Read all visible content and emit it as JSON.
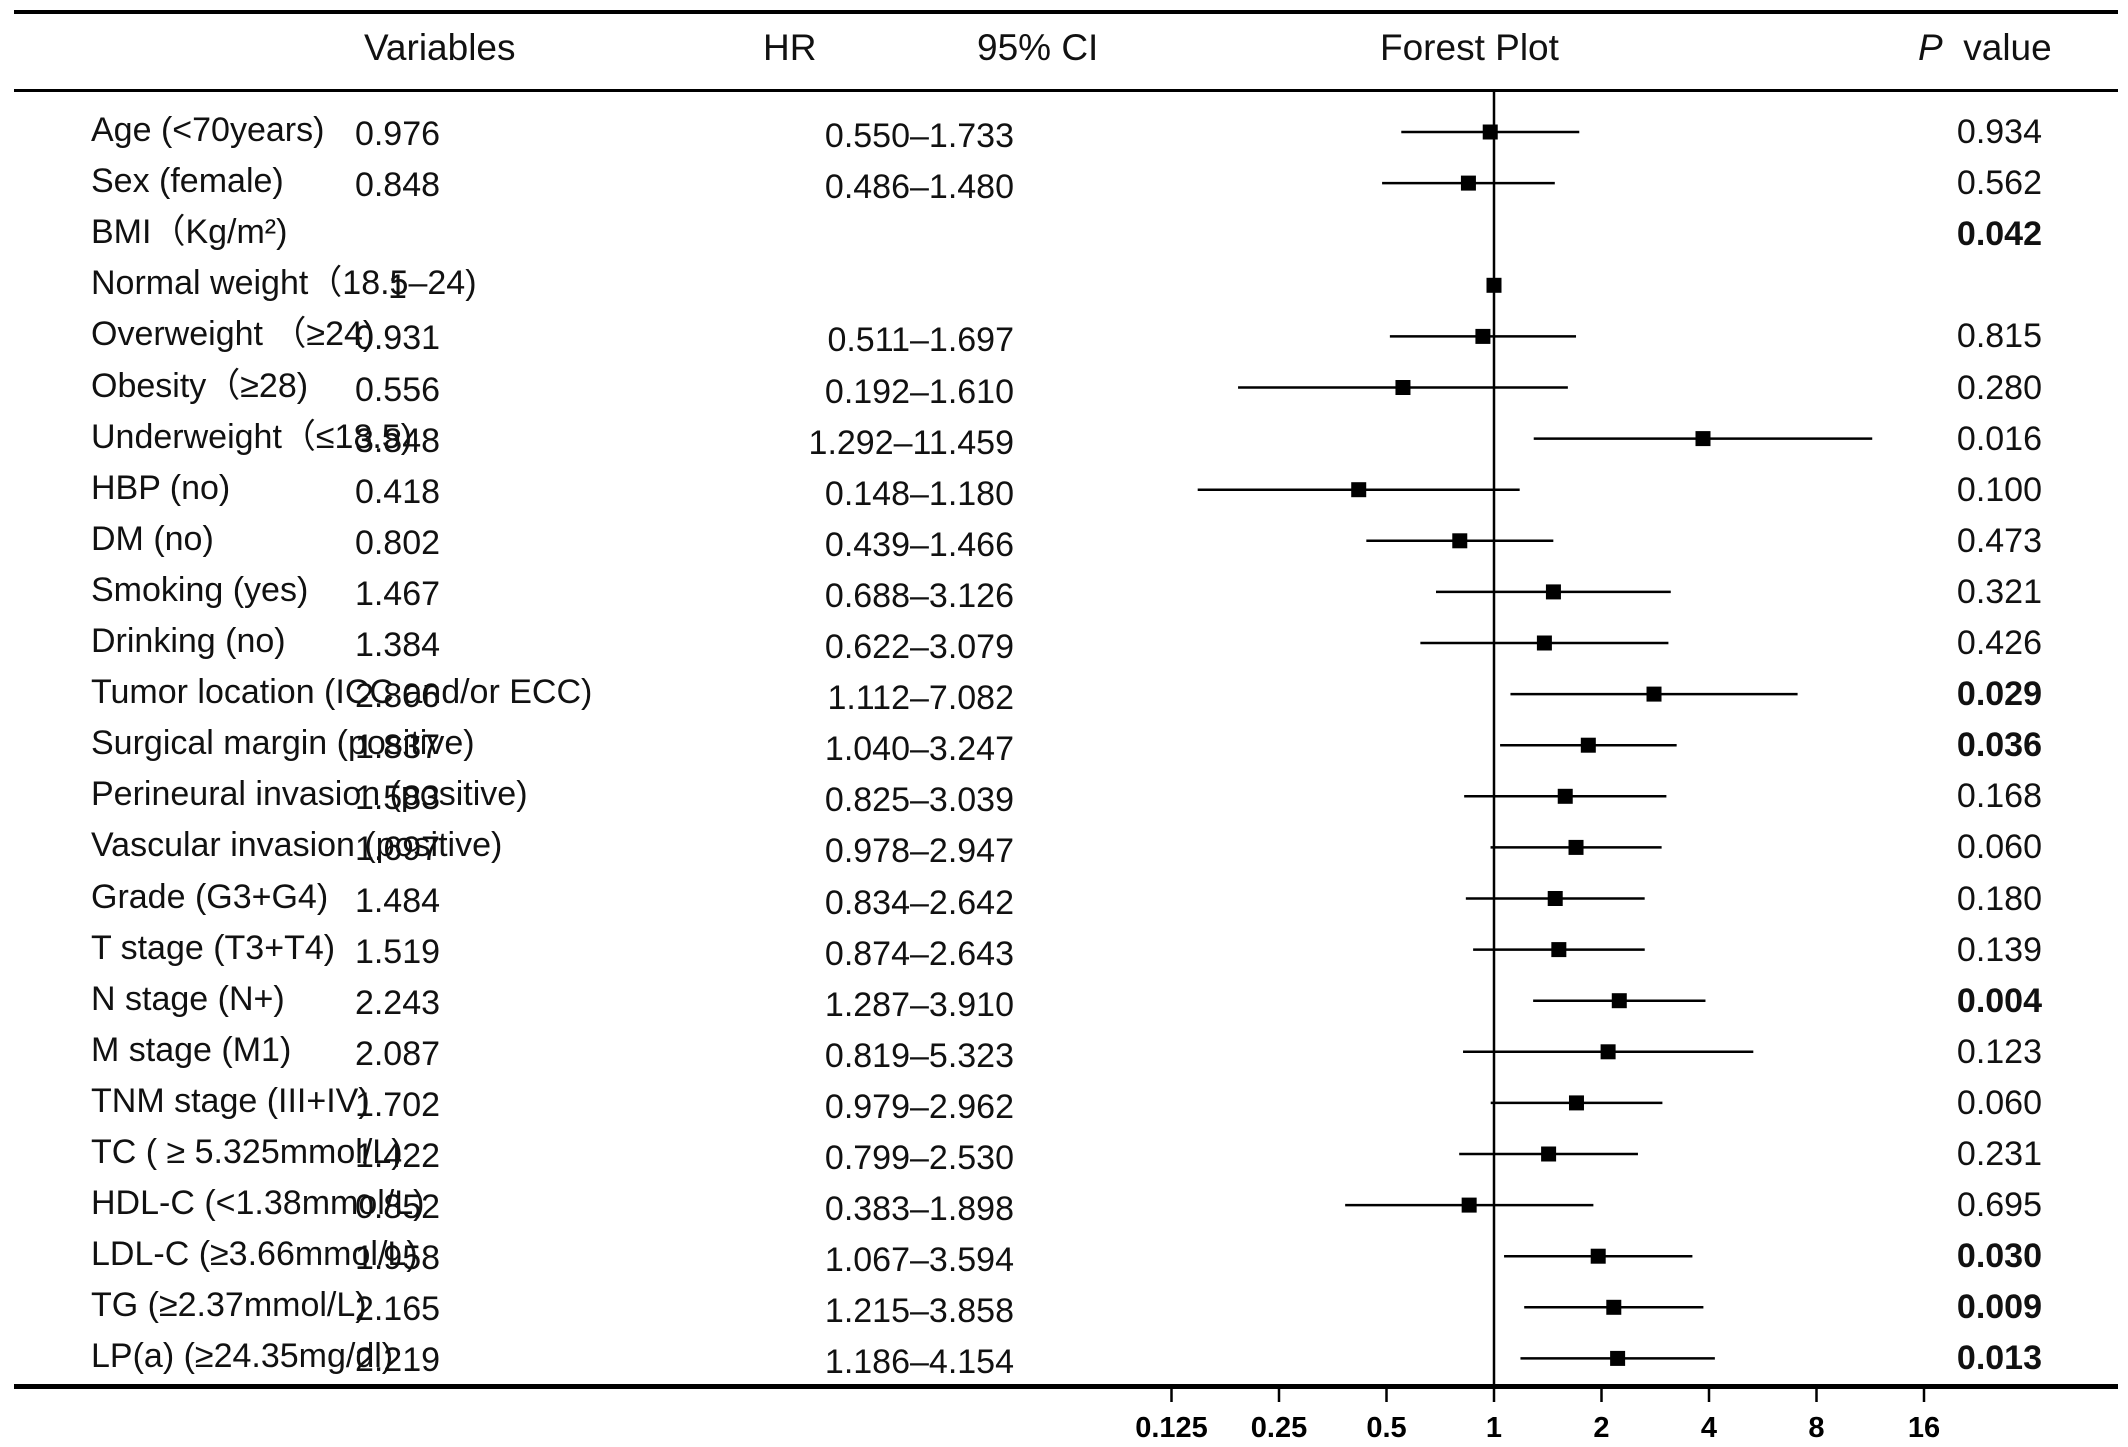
{
  "header": {
    "variables": "Variables",
    "hr": "HR",
    "ci": "95% CI",
    "plot": "Forest Plot",
    "p_italic": "P",
    "p_rest": "  value"
  },
  "chart_data": {
    "type": "forest",
    "x_scale": "log2",
    "x_ticks": [
      0.125,
      0.25,
      0.5,
      1,
      2,
      4,
      8,
      16
    ],
    "x_tick_labels": [
      "0.125",
      "0.25",
      "0.5",
      "1",
      "2",
      "4",
      "8",
      "16"
    ],
    "reference_line": 1,
    "rows": [
      {
        "label": "Age (<70years)",
        "hr": "0.976",
        "ci": "0.550–1.733",
        "p": "0.934",
        "p_bold": false,
        "est": 0.976,
        "lo": 0.55,
        "hi": 1.733
      },
      {
        "label": "Sex (female)",
        "hr": "0.848",
        "ci": "0.486–1.480",
        "p": "0.562",
        "p_bold": false,
        "est": 0.848,
        "lo": 0.486,
        "hi": 1.48
      },
      {
        "label": "BMI（Kg/m²)",
        "hr": "",
        "ci": "",
        "p": "0.042",
        "p_bold": true,
        "est": null,
        "lo": null,
        "hi": null
      },
      {
        "label": "Normal weight（18.5–24)",
        "hr": "1",
        "ci": "",
        "p": "",
        "p_bold": false,
        "est": 1,
        "lo": null,
        "hi": null
      },
      {
        "label": "Overweight （≥24)",
        "hr": "0.931",
        "ci": "0.511–1.697",
        "p": "0.815",
        "p_bold": false,
        "est": 0.931,
        "lo": 0.511,
        "hi": 1.697
      },
      {
        "label": "Obesity（≥28)",
        "hr": "0.556",
        "ci": "0.192–1.610",
        "p": "0.280",
        "p_bold": false,
        "est": 0.556,
        "lo": 0.192,
        "hi": 1.61
      },
      {
        "label": "Underweight（≤18.5)",
        "hr": "3.848",
        "ci": "1.292–11.459",
        "p": "0.016",
        "p_bold": false,
        "est": 3.848,
        "lo": 1.292,
        "hi": 11.459
      },
      {
        "label": "HBP (no)",
        "hr": "0.418",
        "ci": "0.148–1.180",
        "p": "0.100",
        "p_bold": false,
        "est": 0.418,
        "lo": 0.148,
        "hi": 1.18
      },
      {
        "label": "DM (no)",
        "hr": "0.802",
        "ci": "0.439–1.466",
        "p": "0.473",
        "p_bold": false,
        "est": 0.802,
        "lo": 0.439,
        "hi": 1.466
      },
      {
        "label": "Smoking (yes)",
        "hr": "1.467",
        "ci": "0.688–3.126",
        "p": "0.321",
        "p_bold": false,
        "est": 1.467,
        "lo": 0.688,
        "hi": 3.126
      },
      {
        "label": "Drinking (no)",
        "hr": "1.384",
        "ci": "0.622–3.079",
        "p": "0.426",
        "p_bold": false,
        "est": 1.384,
        "lo": 0.622,
        "hi": 3.079
      },
      {
        "label": "Tumor location (ICC and/or ECC)",
        "hr": "2.806",
        "ci": "1.112–7.082",
        "p": "0.029",
        "p_bold": true,
        "est": 2.806,
        "lo": 1.112,
        "hi": 7.082
      },
      {
        "label": "Surgical margin (positive)",
        "hr": "1.837",
        "ci": "1.040–3.247",
        "p": "0.036",
        "p_bold": true,
        "est": 1.837,
        "lo": 1.04,
        "hi": 3.247
      },
      {
        "label": "Perineural invasion (positive)",
        "hr": "1.583",
        "ci": "0.825–3.039",
        "p": "0.168",
        "p_bold": false,
        "est": 1.583,
        "lo": 0.825,
        "hi": 3.039
      },
      {
        "label": "Vascular invasion (positive)",
        "hr": "1.697",
        "ci": "0.978–2.947",
        "p": "0.060",
        "p_bold": false,
        "est": 1.697,
        "lo": 0.978,
        "hi": 2.947
      },
      {
        "label": "Grade (G3+G4)",
        "hr": "1.484",
        "ci": "0.834–2.642",
        "p": "0.180",
        "p_bold": false,
        "est": 1.484,
        "lo": 0.834,
        "hi": 2.642
      },
      {
        "label": "T stage (T3+T4)",
        "hr": "1.519",
        "ci": "0.874–2.643",
        "p": "0.139",
        "p_bold": false,
        "est": 1.519,
        "lo": 0.874,
        "hi": 2.643
      },
      {
        "label": "N stage (N+)",
        "hr": "2.243",
        "ci": "1.287–3.910",
        "p": "0.004",
        "p_bold": true,
        "est": 2.243,
        "lo": 1.287,
        "hi": 3.91
      },
      {
        "label": "M stage (M1)",
        "hr": "2.087",
        "ci": "0.819–5.323",
        "p": "0.123",
        "p_bold": false,
        "est": 2.087,
        "lo": 0.819,
        "hi": 5.323
      },
      {
        "label": "TNM stage (III+IV)",
        "hr": "1.702",
        "ci": "0.979–2.962",
        "p": "0.060",
        "p_bold": false,
        "est": 1.702,
        "lo": 0.979,
        "hi": 2.962
      },
      {
        "label": "TC ( ≥ 5.325mmol/L)",
        "hr": "1.422",
        "ci": "0.799–2.530",
        "p": "0.231",
        "p_bold": false,
        "est": 1.422,
        "lo": 0.799,
        "hi": 2.53
      },
      {
        "label": "HDL-C (<1.38mmol/L)",
        "hr": "0.852",
        "ci": "0.383–1.898",
        "p": "0.695",
        "p_bold": false,
        "est": 0.852,
        "lo": 0.383,
        "hi": 1.898
      },
      {
        "label": "LDL-C (≥3.66mmol/L)",
        "hr": "1.958",
        "ci": "1.067–3.594",
        "p": "0.030",
        "p_bold": true,
        "est": 1.958,
        "lo": 1.067,
        "hi": 3.594
      },
      {
        "label": "TG (≥2.37mmol/L)",
        "hr": "2.165",
        "ci": "1.215–3.858",
        "p": "0.009",
        "p_bold": true,
        "est": 2.165,
        "lo": 1.215,
        "hi": 3.858
      },
      {
        "label": "LP(a) (≥24.35mg/dl)",
        "hr": "2.219",
        "ci": "1.186–4.154",
        "p": "0.013",
        "p_bold": true,
        "est": 2.219,
        "lo": 1.186,
        "hi": 4.154
      }
    ]
  }
}
